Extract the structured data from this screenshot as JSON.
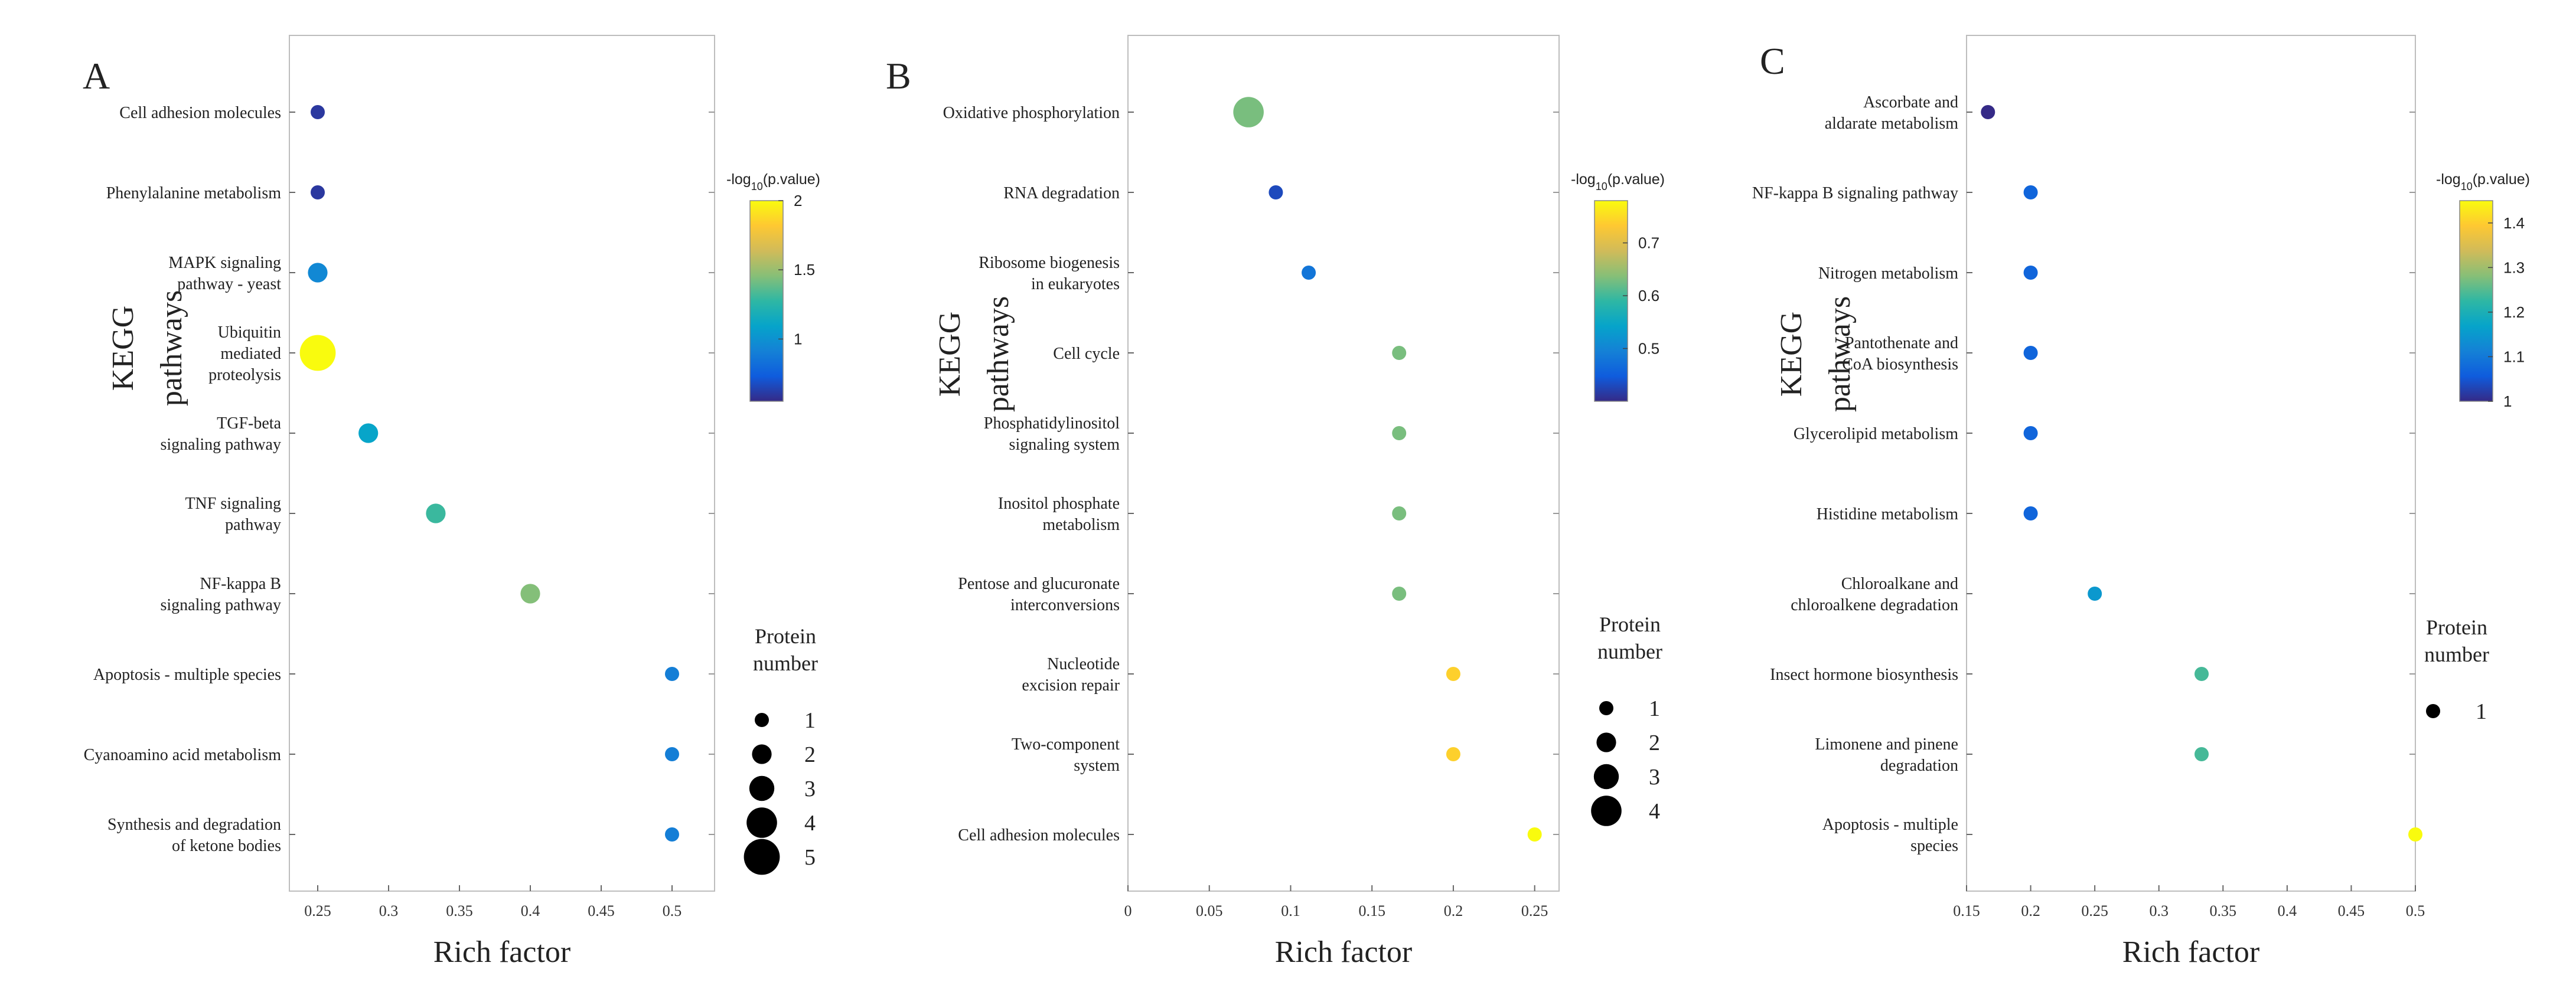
{
  "figure": {
    "bg": "#ffffff"
  },
  "chart_data": [
    {
      "type": "scatter",
      "panel": "A",
      "xlabel": "Rich factor",
      "ylabel": [
        "KEGG",
        "pathways"
      ],
      "xlim": [
        0.23,
        0.53
      ],
      "xticks": [
        0.25,
        0.3,
        0.35,
        0.4,
        0.45,
        0.5
      ],
      "xtick_labels": [
        "0.25",
        "0.3",
        "0.35",
        "0.4",
        "0.45",
        "0.5"
      ],
      "categories": [
        [
          "Cell adhesion molecules"
        ],
        [
          "Phenylalanine metabolism"
        ],
        [
          "MAPK signaling",
          "pathway - yeast"
        ],
        [
          "Ubiquitin",
          "mediated",
          "proteolysis"
        ],
        [
          "TGF-beta",
          "signaling pathway"
        ],
        [
          "TNF signaling",
          "pathway"
        ],
        [
          "NF-kappa B",
          "signaling pathway"
        ],
        [
          "Apoptosis - multiple species"
        ],
        [
          "Cyanoamino acid metabolism"
        ],
        [
          "Synthesis and degradation",
          "of ketone bodies"
        ]
      ],
      "rich_factor": [
        0.25,
        0.25,
        0.25,
        0.25,
        0.2857,
        0.3333,
        0.4,
        0.5,
        0.5,
        0.5
      ],
      "neg_log10_p": [
        0.6,
        0.6,
        0.95,
        2.0,
        1.1,
        1.3,
        1.45,
        0.9,
        0.9,
        0.9
      ],
      "protein_number": [
        1,
        1,
        2,
        5,
        2,
        2,
        2,
        1,
        1,
        1
      ],
      "colorbar": {
        "title": "-log10(p.value)",
        "min": 0.55,
        "max": 2.0,
        "ticks": [
          1,
          1.5,
          2
        ],
        "tick_labels": [
          "1",
          "1.5",
          "2"
        ]
      },
      "size_legend": {
        "title": [
          "Protein",
          "number"
        ],
        "sizes": [
          1,
          2,
          3,
          4,
          5
        ],
        "labels": [
          "1",
          "2",
          "3",
          "4",
          "5"
        ]
      }
    },
    {
      "type": "scatter",
      "panel": "B",
      "xlabel": "Rich factor",
      "ylabel": [
        "KEGG",
        "pathways"
      ],
      "xlim": [
        0,
        0.265
      ],
      "xticks": [
        0,
        0.05,
        0.1,
        0.15,
        0.2,
        0.25
      ],
      "xtick_labels": [
        "0",
        "0.05",
        "0.1",
        "0.15",
        "0.2",
        "0.25"
      ],
      "categories": [
        [
          "Oxidative phosphorylation"
        ],
        [
          "RNA degradation"
        ],
        [
          "Ribosome biogenesis",
          "in eukaryotes"
        ],
        [
          "Cell cycle"
        ],
        [
          "Phosphatidylinositol",
          "signaling system"
        ],
        [
          "Inositol phosphate",
          "metabolism"
        ],
        [
          "Pentose and glucuronate",
          "interconversions"
        ],
        [
          "Nucleotide",
          "excision repair"
        ],
        [
          "Two-component",
          "system"
        ],
        [
          "Cell adhesion molecules"
        ]
      ],
      "rich_factor": [
        0.0741,
        0.0909,
        0.1111,
        0.1667,
        0.1667,
        0.1667,
        0.1667,
        0.2,
        0.2,
        0.25
      ],
      "neg_log10_p": [
        0.63,
        0.43,
        0.48,
        0.63,
        0.63,
        0.63,
        0.63,
        0.74,
        0.74,
        0.78
      ],
      "protein_number": [
        4,
        1,
        1,
        1,
        1,
        1,
        1,
        1,
        1,
        1
      ],
      "colorbar": {
        "title": "-log10(p.value)",
        "min": 0.4,
        "max": 0.78,
        "ticks": [
          0.5,
          0.6,
          0.7
        ],
        "tick_labels": [
          "0.5",
          "0.6",
          "0.7"
        ]
      },
      "size_legend": {
        "title": [
          "Protein",
          "number"
        ],
        "sizes": [
          1,
          2,
          3,
          4
        ],
        "labels": [
          "1",
          "2",
          "3",
          "4"
        ]
      }
    },
    {
      "type": "scatter",
      "panel": "C",
      "xlabel": "Rich factor",
      "ylabel": [
        "KEGG",
        "pathways"
      ],
      "xlim": [
        0.15,
        0.5
      ],
      "xticks": [
        0.15,
        0.2,
        0.25,
        0.3,
        0.35,
        0.4,
        0.45,
        0.5
      ],
      "xtick_labels": [
        "0.15",
        "0.2",
        "0.25",
        "0.3",
        "0.35",
        "0.4",
        "0.45",
        "0.5"
      ],
      "categories": [
        [
          "Ascorbate and",
          "aldarate metabolism"
        ],
        [
          "NF-kappa B signaling pathway"
        ],
        [
          "Nitrogen metabolism"
        ],
        [
          "Pantothenate and",
          "CoA biosynthesis"
        ],
        [
          "Glycerolipid metabolism"
        ],
        [
          "Histidine metabolism"
        ],
        [
          "Chloroalkane and",
          "chloroalkene degradation"
        ],
        [
          "Insect hormone biosynthesis"
        ],
        [
          "Limonene and pinene",
          "degradation"
        ],
        [
          "Apoptosis - multiple",
          "species"
        ]
      ],
      "rich_factor": [
        0.1667,
        0.2,
        0.2,
        0.2,
        0.2,
        0.2,
        0.25,
        0.3333,
        0.3333,
        0.5
      ],
      "neg_log10_p": [
        1.0,
        1.07,
        1.07,
        1.07,
        1.07,
        1.07,
        1.15,
        1.24,
        1.24,
        1.45
      ],
      "protein_number": [
        1,
        1,
        1,
        1,
        1,
        1,
        1,
        1,
        1,
        1
      ],
      "colorbar": {
        "title": "-log10(p.value)",
        "min": 1.0,
        "max": 1.45,
        "ticks": [
          1,
          1.1,
          1.2,
          1.3,
          1.4
        ],
        "tick_labels": [
          "1",
          "1.1",
          "1.2",
          "1.3",
          "1.4"
        ]
      },
      "size_legend": {
        "title": [
          "Protein",
          "number"
        ],
        "sizes": [
          1
        ],
        "labels": [
          "1"
        ]
      }
    }
  ]
}
